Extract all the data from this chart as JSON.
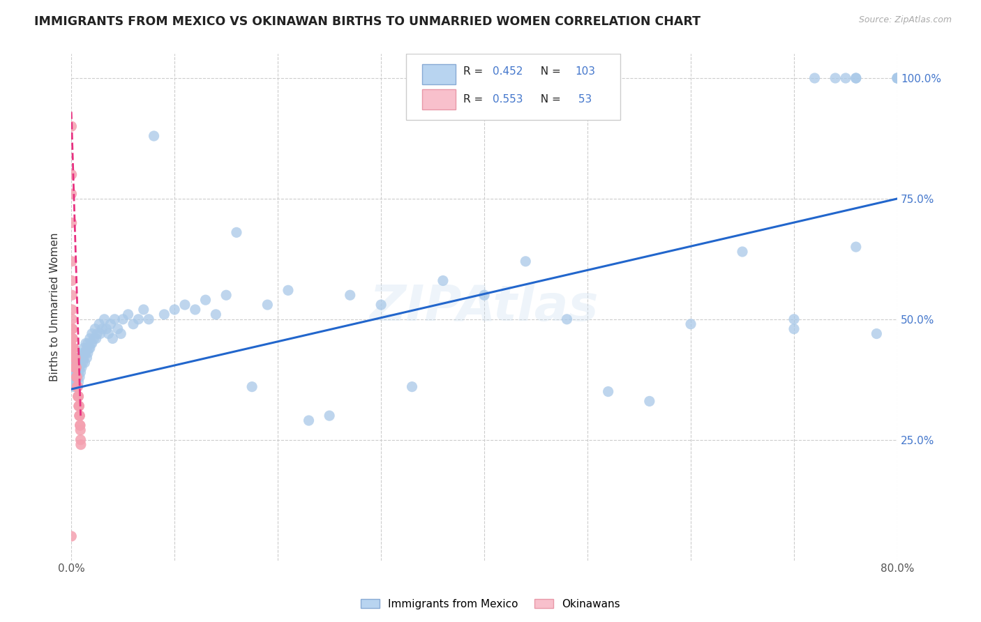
{
  "title": "IMMIGRANTS FROM MEXICO VS OKINAWAN BIRTHS TO UNMARRIED WOMEN CORRELATION CHART",
  "source": "Source: ZipAtlas.com",
  "ylabel": "Births to Unmarried Women",
  "ytick_labels": [
    "100.0%",
    "75.0%",
    "50.0%",
    "25.0%"
  ],
  "ytick_values": [
    1.0,
    0.75,
    0.5,
    0.25
  ],
  "legend_blue_R": "0.452",
  "legend_blue_N": "103",
  "legend_pink_R": "0.553",
  "legend_pink_N": "53",
  "legend_label_blue": "Immigrants from Mexico",
  "legend_label_pink": "Okinawans",
  "blue_color": "#a8c8e8",
  "pink_color": "#f4a0b0",
  "line_color": "#2266cc",
  "pink_line_color": "#e83080",
  "watermark": "ZIPAtlas",
  "blue_scatter_x": [
    0.0005,
    0.001,
    0.0015,
    0.002,
    0.0025,
    0.003,
    0.003,
    0.004,
    0.004,
    0.005,
    0.005,
    0.006,
    0.006,
    0.007,
    0.007,
    0.007,
    0.008,
    0.008,
    0.009,
    0.009,
    0.01,
    0.01,
    0.011,
    0.011,
    0.012,
    0.012,
    0.013,
    0.013,
    0.014,
    0.014,
    0.015,
    0.015,
    0.016,
    0.016,
    0.017,
    0.018,
    0.018,
    0.019,
    0.02,
    0.02,
    0.022,
    0.023,
    0.024,
    0.025,
    0.027,
    0.028,
    0.03,
    0.032,
    0.034,
    0.036,
    0.038,
    0.04,
    0.042,
    0.045,
    0.048,
    0.05,
    0.055,
    0.06,
    0.065,
    0.07,
    0.075,
    0.08,
    0.09,
    0.1,
    0.11,
    0.12,
    0.13,
    0.14,
    0.15,
    0.16,
    0.175,
    0.19,
    0.21,
    0.23,
    0.25,
    0.27,
    0.3,
    0.33,
    0.36,
    0.4,
    0.44,
    0.48,
    0.52,
    0.56,
    0.6,
    0.65,
    0.7,
    0.72,
    0.75,
    0.76,
    0.76,
    0.78,
    0.8,
    0.8,
    0.81,
    0.82,
    0.82,
    0.82,
    0.83,
    0.8,
    0.76,
    0.74,
    0.7
  ],
  "blue_scatter_y": [
    0.37,
    0.39,
    0.38,
    0.36,
    0.4,
    0.41,
    0.38,
    0.39,
    0.37,
    0.4,
    0.36,
    0.41,
    0.38,
    0.42,
    0.39,
    0.37,
    0.4,
    0.38,
    0.41,
    0.39,
    0.42,
    0.4,
    0.43,
    0.41,
    0.44,
    0.42,
    0.43,
    0.41,
    0.45,
    0.43,
    0.44,
    0.42,
    0.45,
    0.43,
    0.44,
    0.46,
    0.44,
    0.45,
    0.47,
    0.45,
    0.46,
    0.48,
    0.46,
    0.47,
    0.49,
    0.47,
    0.48,
    0.5,
    0.48,
    0.47,
    0.49,
    0.46,
    0.5,
    0.48,
    0.47,
    0.5,
    0.51,
    0.49,
    0.5,
    0.52,
    0.5,
    0.88,
    0.51,
    0.52,
    0.53,
    0.52,
    0.54,
    0.51,
    0.55,
    0.68,
    0.36,
    0.53,
    0.56,
    0.29,
    0.3,
    0.55,
    0.53,
    0.36,
    0.58,
    0.55,
    0.62,
    0.5,
    0.35,
    0.33,
    0.49,
    0.64,
    0.5,
    1.0,
    1.0,
    1.0,
    1.0,
    0.47,
    1.0,
    1.0,
    1.0,
    1.0,
    1.0,
    1.0,
    1.0,
    1.0,
    0.65,
    1.0,
    0.48
  ],
  "pink_scatter_x": [
    0.0002,
    0.0003,
    0.0004,
    0.0005,
    0.0006,
    0.0007,
    0.0008,
    0.0009,
    0.001,
    0.0012,
    0.0014,
    0.0016,
    0.0018,
    0.002,
    0.0022,
    0.0024,
    0.0026,
    0.0028,
    0.003,
    0.0032,
    0.0034,
    0.0036,
    0.0038,
    0.004,
    0.0042,
    0.0044,
    0.0046,
    0.0048,
    0.005,
    0.0052,
    0.0054,
    0.0056,
    0.0058,
    0.006,
    0.0062,
    0.0064,
    0.0066,
    0.0068,
    0.007,
    0.0072,
    0.0074,
    0.0076,
    0.0078,
    0.008,
    0.0082,
    0.0084,
    0.0086,
    0.0088,
    0.009,
    0.0092,
    0.0002,
    0.0003,
    0.0001
  ],
  "pink_scatter_y": [
    0.9,
    0.7,
    0.62,
    0.58,
    0.55,
    0.52,
    0.5,
    0.48,
    0.48,
    0.46,
    0.46,
    0.44,
    0.44,
    0.44,
    0.42,
    0.42,
    0.44,
    0.42,
    0.42,
    0.4,
    0.42,
    0.42,
    0.4,
    0.42,
    0.4,
    0.4,
    0.4,
    0.4,
    0.38,
    0.38,
    0.38,
    0.36,
    0.36,
    0.36,
    0.36,
    0.34,
    0.34,
    0.34,
    0.34,
    0.32,
    0.32,
    0.32,
    0.3,
    0.3,
    0.3,
    0.28,
    0.28,
    0.27,
    0.25,
    0.24,
    0.76,
    0.8,
    0.05
  ],
  "xlim": [
    0.0,
    0.8
  ],
  "ylim": [
    0.0,
    1.05
  ],
  "blue_line_x0": 0.0,
  "blue_line_y0": 0.355,
  "blue_line_x1": 0.8,
  "blue_line_y1": 0.75,
  "pink_line_x0": 0.0,
  "pink_line_y0": 0.93,
  "pink_line_x1": 0.009,
  "pink_line_y1": 0.3
}
